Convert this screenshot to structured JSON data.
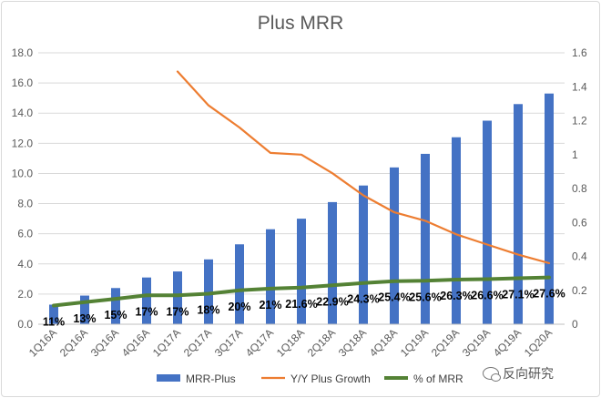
{
  "chart_data": {
    "type": "bar",
    "title": "Plus MRR",
    "categories": [
      "1Q16A",
      "2Q16A",
      "3Q16A",
      "4Q16A",
      "1Q17A",
      "2Q17A",
      "3Q17A",
      "4Q17A",
      "1Q18A",
      "2Q18A",
      "3Q18A",
      "4Q18A",
      "1Q19A",
      "2Q19A",
      "3Q19A",
      "4Q19A",
      "1Q20A"
    ],
    "ylim": [
      0,
      18
    ],
    "y_ticks": [
      "0.0",
      "2.0",
      "4.0",
      "6.0",
      "8.0",
      "10.0",
      "12.0",
      "14.0",
      "16.0",
      "18.0"
    ],
    "y2lim": [
      0,
      1.6
    ],
    "y2_ticks": [
      "0",
      "0.2",
      "0.4",
      "0.6",
      "0.8",
      "1",
      "1.2",
      "1.4",
      "1.6"
    ],
    "grid": true,
    "legend_position": "bottom",
    "series": [
      {
        "name": "MRR-Plus",
        "type": "bar",
        "axis": "left",
        "color": "#4472c4",
        "values": [
          1.3,
          1.9,
          2.4,
          3.1,
          3.5,
          4.3,
          5.3,
          6.3,
          7.0,
          8.1,
          9.2,
          10.4,
          11.3,
          12.4,
          13.5,
          14.6,
          15.3
        ]
      },
      {
        "name": "Y/Y Plus Growth",
        "type": "line",
        "axis": "right",
        "color": "#ed7d31",
        "values": [
          null,
          null,
          null,
          null,
          1.49,
          1.29,
          1.16,
          1.01,
          1.0,
          0.89,
          0.76,
          0.66,
          0.61,
          0.53,
          0.47,
          0.41,
          0.36
        ]
      },
      {
        "name": "% of MRR",
        "type": "line",
        "axis": "right",
        "color": "#548235",
        "values": [
          0.11,
          0.13,
          0.15,
          0.17,
          0.17,
          0.18,
          0.2,
          0.21,
          0.216,
          0.229,
          0.243,
          0.254,
          0.256,
          0.263,
          0.266,
          0.271,
          0.276
        ],
        "labels": [
          "11%",
          "13%",
          "15%",
          "17%",
          "17%",
          "18%",
          "20%",
          "21%",
          "21.6%",
          "22.9%",
          "24.3%",
          "25.4%",
          "25.6%",
          "26.3%",
          "26.6%",
          "27.1%",
          "27.6%"
        ]
      }
    ]
  },
  "watermark": {
    "text": "反向研究",
    "icon": "wechat-icon"
  }
}
